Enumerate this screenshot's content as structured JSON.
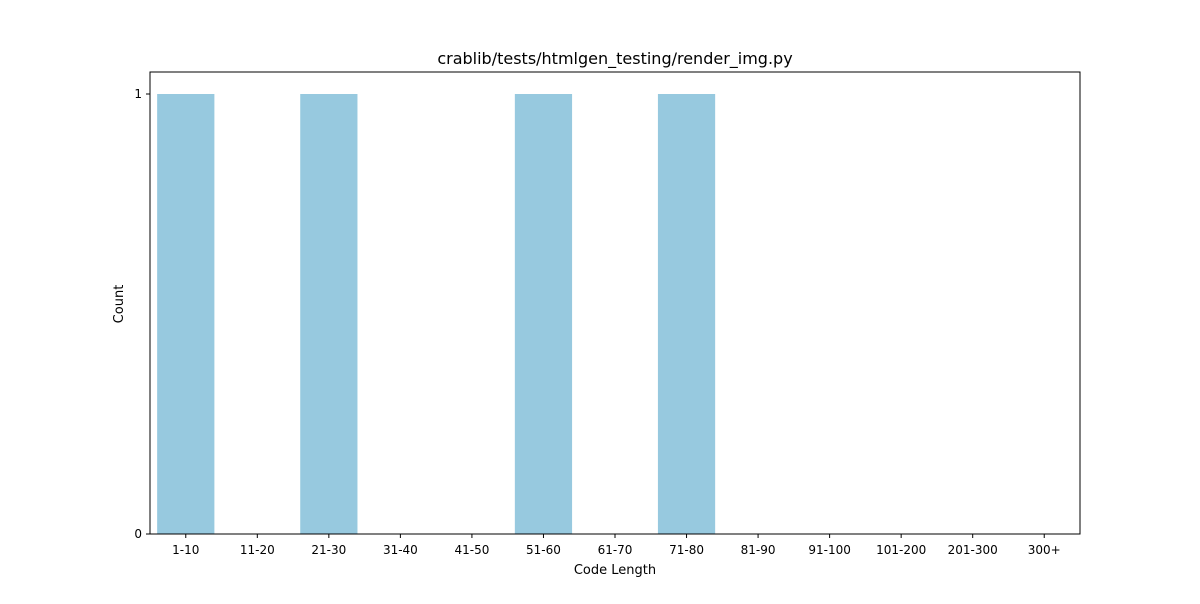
{
  "chart_data": {
    "type": "bar",
    "title": "crablib/tests/htmlgen_testing/render_img.py",
    "xlabel": "Code Length",
    "ylabel": "Count",
    "categories": [
      "1-10",
      "11-20",
      "21-30",
      "31-40",
      "41-50",
      "51-60",
      "61-70",
      "71-80",
      "81-90",
      "91-100",
      "101-200",
      "201-300",
      "300+"
    ],
    "values": [
      1,
      0,
      1,
      0,
      0,
      1,
      0,
      1,
      0,
      0,
      0,
      0,
      0
    ],
    "ylim": [
      0,
      1.05
    ],
    "yticks": [
      0,
      1
    ],
    "bar_color": "#97c9df",
    "grid": false,
    "legend": false
  }
}
